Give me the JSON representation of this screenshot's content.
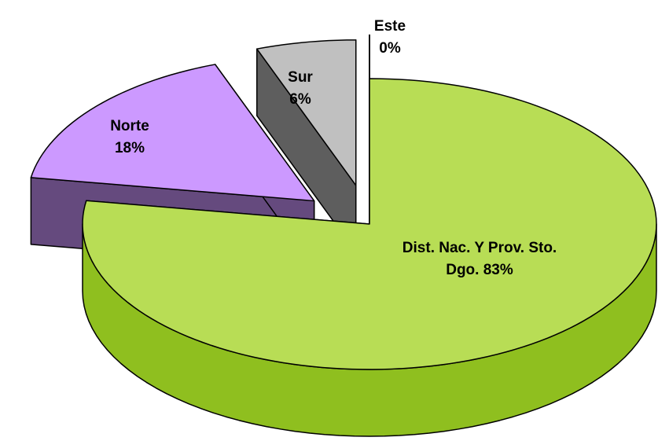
{
  "chart_data": {
    "type": "pie",
    "three_d": true,
    "categories": [
      "Dist. Nac. Y Prov. Sto. Dgo.",
      "Norte",
      "Sur",
      "Este"
    ],
    "values": [
      83,
      18,
      6,
      0
    ],
    "value_labels": [
      "83%",
      "18%",
      "6%",
      "0%"
    ],
    "colors": [
      "#b8dd55",
      "#cc99ff",
      "#c0c0c0",
      "#ccffff"
    ],
    "side_colors": [
      "#8fbf1f",
      "#654a7e",
      "#5e5e5e",
      "#88bbbb"
    ]
  }
}
